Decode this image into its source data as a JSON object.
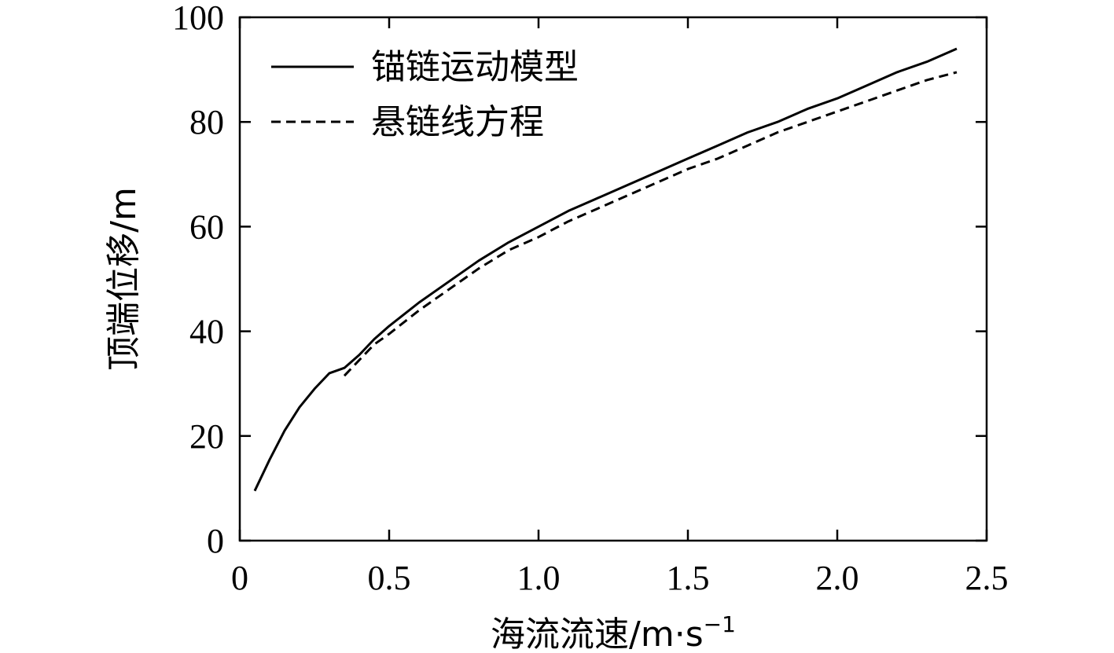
{
  "chart_data": {
    "type": "line",
    "xlabel": "海流流速/m·s",
    "xlabel_sup": "−1",
    "ylabel": "顶端位移/m",
    "xlim": [
      0,
      2.5
    ],
    "ylim": [
      0,
      100
    ],
    "xticks": [
      0,
      0.5,
      1.0,
      1.5,
      2.0,
      2.5
    ],
    "xtick_labels": [
      "0",
      "0.5",
      "1.0",
      "1.5",
      "2.0",
      "2.5"
    ],
    "yticks": [
      0,
      20,
      40,
      60,
      80,
      100
    ],
    "ytick_labels": [
      "0",
      "20",
      "40",
      "60",
      "80",
      "100"
    ],
    "grid": false,
    "legend_position": "top-left",
    "series": [
      {
        "name": "锚链运动模型",
        "style": "solid",
        "x": [
          0.05,
          0.1,
          0.15,
          0.2,
          0.25,
          0.3,
          0.35,
          0.4,
          0.45,
          0.5,
          0.6,
          0.7,
          0.8,
          0.9,
          1.0,
          1.1,
          1.2,
          1.3,
          1.4,
          1.5,
          1.6,
          1.7,
          1.8,
          1.9,
          2.0,
          2.1,
          2.2,
          2.3,
          2.4
        ],
        "y": [
          9.5,
          15.5,
          21.0,
          25.5,
          29.0,
          32.0,
          33.0,
          35.5,
          38.5,
          41.0,
          45.5,
          49.5,
          53.5,
          57.0,
          60.0,
          63.0,
          65.5,
          68.0,
          70.5,
          73.0,
          75.5,
          78.0,
          80.0,
          82.5,
          84.5,
          87.0,
          89.5,
          91.5,
          94.0
        ]
      },
      {
        "name": "悬链线方程",
        "style": "dashed",
        "x": [
          0.35,
          0.4,
          0.45,
          0.5,
          0.6,
          0.7,
          0.8,
          0.9,
          1.0,
          1.1,
          1.2,
          1.3,
          1.4,
          1.5,
          1.6,
          1.7,
          1.8,
          1.9,
          2.0,
          2.1,
          2.2,
          2.3,
          2.4
        ],
        "y": [
          31.5,
          34.5,
          37.5,
          39.5,
          44.0,
          48.0,
          52.0,
          55.5,
          58.0,
          61.0,
          63.5,
          66.0,
          68.5,
          71.0,
          73.0,
          75.5,
          78.0,
          80.0,
          82.0,
          84.0,
          86.0,
          88.0,
          89.5
        ]
      }
    ]
  }
}
